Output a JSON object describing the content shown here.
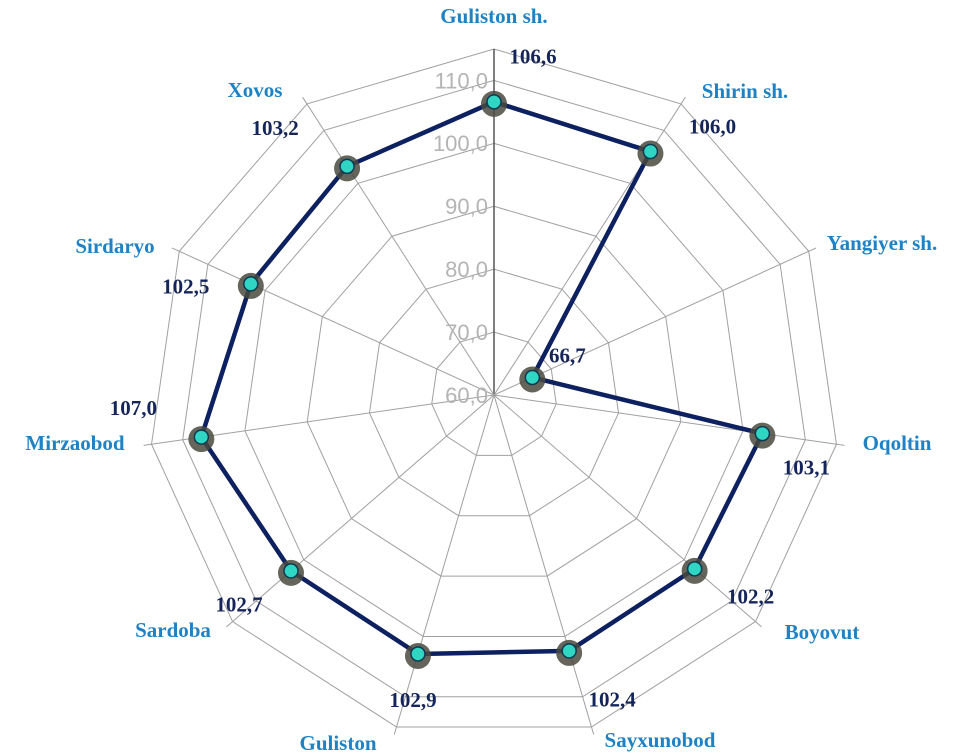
{
  "chart_data": {
    "type": "radar",
    "categories": [
      "Guliston sh.",
      "Shirin sh.",
      "Yangiyer sh.",
      "Oqoltin",
      "Boyovut",
      "Sayxunobod",
      "Guliston",
      "Sardoba",
      "Mirzaobod",
      "Sirdaryo",
      "Xovos"
    ],
    "series": [
      {
        "name": null,
        "color": "#0d2060",
        "values": [
          106.6,
          106.0,
          66.7,
          103.1,
          102.2,
          102.4,
          102.9,
          102.7,
          107.0,
          102.5,
          103.2
        ],
        "value_labels": [
          "106,6",
          "106,0",
          "66,7",
          "103,1",
          "102,2",
          "102,4",
          "102,9",
          "102,7",
          "107,0",
          "102,5",
          "103,2"
        ]
      }
    ],
    "ylim": [
      60,
      115
    ],
    "yticks": [
      {
        "value": 60,
        "label": "60,0"
      },
      {
        "value": 70,
        "label": "70,0"
      },
      {
        "value": 80,
        "label": "80,0"
      },
      {
        "value": 90,
        "label": "90,0"
      },
      {
        "value": 100,
        "label": "100,0"
      },
      {
        "value": 110,
        "label": "110,0"
      }
    ],
    "grid": true
  }
}
